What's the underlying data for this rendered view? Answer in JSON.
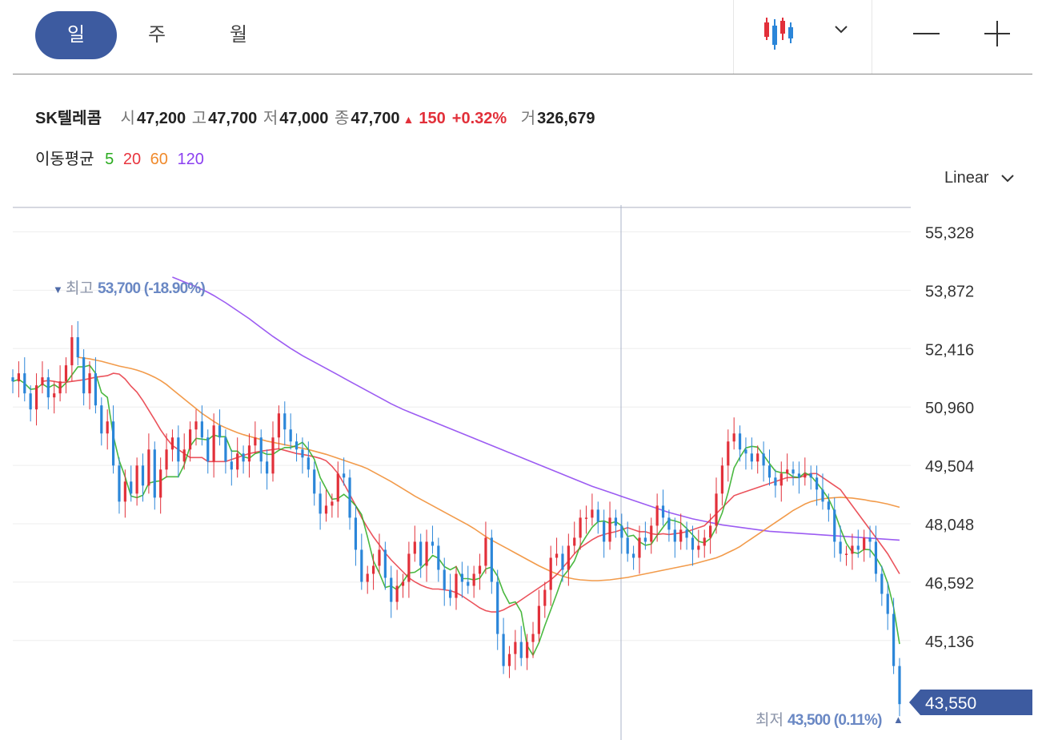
{
  "period_tabs": [
    "일",
    "주",
    "월"
  ],
  "active_tab": 0,
  "toolbar": {
    "chart_type_icon": "candlestick-icon",
    "dropdown_icon": "chevron-down-icon",
    "zoom_out_icon": "minus-icon",
    "zoom_in_icon": "plus-icon"
  },
  "quote": {
    "name": "SK텔레콤",
    "open_label": "시",
    "open": "47,200",
    "high_label": "고",
    "high": "47,700",
    "low_label": "저",
    "low": "47,000",
    "close_label": "종",
    "close": "47,700",
    "change_arrow": "▲",
    "change": "150",
    "change_pct": "+0.32%",
    "volume_label": "거",
    "volume": "326,679"
  },
  "ma_legend": {
    "label": "이동평균",
    "items": [
      {
        "period": "5",
        "color": "#2aab1f"
      },
      {
        "period": "20",
        "color": "#e8353f"
      },
      {
        "period": "60",
        "color": "#f08a2c"
      },
      {
        "period": "120",
        "color": "#8b3ff0"
      }
    ]
  },
  "scale_selector": "Linear",
  "chart_data": {
    "type": "candlestick",
    "y_ticks": [
      "55,328",
      "53,872",
      "52,416",
      "50,960",
      "49,504",
      "48,048",
      "46,592",
      "45,136"
    ],
    "ylim": [
      43000,
      56000
    ],
    "current_price_label": "43,550",
    "high_marker": {
      "prefix": "▼",
      "label": "최고",
      "value": "53,700 (-18.90%)"
    },
    "low_marker": {
      "label": "최저",
      "value": "43,500 (0.11%)",
      "suffix": "▲"
    },
    "colors": {
      "up": "#e2303a",
      "down": "#2b86d9",
      "ma5": "#2aab1f",
      "ma20": "#e8353f",
      "ma60": "#f08a2c",
      "ma120": "#8b3ff0"
    },
    "closes": [
      51600,
      51800,
      51300,
      50900,
      51500,
      51700,
      51200,
      51300,
      51600,
      52000,
      52700,
      52200,
      51300,
      51800,
      51000,
      50300,
      50600,
      49500,
      48600,
      49100,
      48800,
      49500,
      49000,
      49900,
      48700,
      49400,
      49900,
      50200,
      49600,
      49900,
      50400,
      50600,
      50200,
      49600,
      50500,
      50200,
      49600,
      49400,
      49800,
      49600,
      50000,
      50200,
      49600,
      49300,
      50200,
      50800,
      50400,
      50100,
      49900,
      49700,
      49400,
      48800,
      48300,
      48500,
      48600,
      49300,
      49200,
      48200,
      47400,
      46600,
      46800,
      47000,
      47400,
      46700,
      46100,
      46500,
      46600,
      47300,
      47600,
      47000,
      47600,
      47500,
      46900,
      46400,
      46200,
      46800,
      46600,
      46500,
      46800,
      47000,
      47700,
      46600,
      45300,
      44500,
      44800,
      45100,
      44700,
      45100,
      45300,
      46000,
      46400,
      47200,
      47300,
      46900,
      47500,
      47700,
      48200,
      48200,
      48400,
      48100,
      47600,
      48200,
      48000,
      47700,
      47300,
      47200,
      47700,
      47600,
      48000,
      48500,
      48200,
      47900,
      47600,
      47900,
      47700,
      47400,
      47500,
      47700,
      48000,
      48800,
      49500,
      50100,
      50300,
      49900,
      49800,
      49600,
      49800,
      49500,
      49200,
      49000,
      49300,
      49400,
      49300,
      49200,
      49300,
      49200,
      48900,
      48600,
      48400,
      47600,
      47300,
      47300,
      47500,
      47400,
      47700,
      47600,
      46800,
      46300,
      45800,
      44500,
      43550
    ],
    "ma5": [
      51600,
      51650,
      51550,
      51400,
      51420,
      51540,
      51440,
      51520,
      51420,
      51560,
      51760,
      51960,
      51960,
      52000,
      51800,
      51320,
      51200,
      50240,
      49620,
      49220,
      48740,
      48700,
      48760,
      49060,
      49100,
      49120,
      49220,
      49220,
      49220,
      49520,
      49980,
      50180,
      50160,
      50140,
      50260,
      50220,
      50220,
      49860,
      49860,
      49720,
      49680,
      49800,
      49840,
      49780,
      49780,
      49880,
      49950,
      49950,
      50000,
      50080,
      49900,
      49660,
      49200,
      48920,
      48660,
      48680,
      48780,
      48660,
      48500,
      48280,
      47720,
      47120,
      46820,
      46460,
      46500,
      46400,
      46600,
      46820,
      46840,
      46940,
      47080,
      47260,
      47190,
      46980,
      46900,
      46980,
      46680,
      46680,
      46650,
      46690,
      46920,
      46970,
      46740,
      46340,
      46060,
      46100,
      45850,
      45010,
      44770,
      45080,
      45510,
      45900,
      46300,
      46720,
      46900,
      47120,
      47500,
      47740,
      47960,
      48100,
      48120,
      48060,
      48100,
      48000,
      47730,
      47760,
      47600,
      47510,
      47540,
      47760,
      47960,
      48150,
      48120,
      48070,
      47930,
      47770,
      47610,
      47570,
      47680,
      47960,
      48320,
      48830,
      49440,
      49710,
      49940,
      49980,
      49960,
      49760,
      49550,
      49360,
      49320,
      49320,
      49220,
      49200,
      49320,
      49240,
      49070,
      48880,
      48670,
      48350,
      47930,
      47560,
      47340,
      47310,
      47410,
      47400,
      47210,
      46970,
      46570,
      45960,
      45050
    ],
    "ma20": [
      51600,
      51620,
      51600,
      51570,
      51580,
      51600,
      51620,
      51640,
      51670,
      51700,
      51720,
      51740,
      51800,
      51780,
      51660,
      51480,
      51330,
      51120,
      50880,
      50640,
      50390,
      50180,
      50000,
      49900,
      49800,
      49700,
      49700,
      49700,
      49600,
      49600,
      49600,
      49600,
      49650,
      49700,
      49750,
      49800,
      49830,
      49860,
      49880,
      49900,
      49920,
      49880,
      49840,
      49800,
      49780,
      49750,
      49720,
      49680,
      49620,
      49480,
      49300,
      49050,
      48780,
      48500,
      48200,
      47950,
      47720,
      47520,
      47320,
      47150,
      47000,
      46850,
      46700,
      46600,
      46520,
      46460,
      46420,
      46420,
      46400,
      46380,
      46330,
      46250,
      46150,
      46050,
      45950,
      45880,
      45850,
      45850,
      45900,
      45980,
      46050,
      46150,
      46250,
      46350,
      46450,
      46550,
      46650,
      46780,
      46950,
      47120,
      47300,
      47450,
      47550,
      47650,
      47730,
      47780,
      47820,
      47850,
      47900,
      47950,
      47900,
      47850,
      47850,
      47800,
      47780,
      47800,
      47780,
      47800,
      47820,
      47850,
      47900,
      47950,
      48000,
      48150,
      48300,
      48450,
      48600,
      48750,
      48800,
      48850,
      48900,
      48950,
      49000,
      49050,
      49100,
      49150,
      49200,
      49200,
      49200,
      49250,
      49300,
      49300,
      49200,
      49100,
      49000,
      48900,
      48700,
      48500,
      48300,
      48100,
      47900,
      47700,
      47500,
      47300,
      47050,
      46800
    ],
    "ma60": [
      52200,
      52180,
      52160,
      52130,
      52100,
      52060,
      52020,
      51980,
      51950,
      51920,
      51880,
      51830,
      51770,
      51700,
      51620,
      51520,
      51400,
      51280,
      51160,
      51040,
      50920,
      50800,
      50700,
      50600,
      50510,
      50440,
      50380,
      50320,
      50270,
      50230,
      50190,
      50150,
      50110,
      50080,
      50050,
      50020,
      49990,
      49960,
      49930,
      49900,
      49860,
      49820,
      49780,
      49730,
      49680,
      49630,
      49580,
      49530,
      49480,
      49420,
      49340,
      49260,
      49180,
      49100,
      49010,
      48920,
      48830,
      48740,
      48660,
      48580,
      48500,
      48420,
      48340,
      48260,
      48180,
      48100,
      48020,
      47930,
      47830,
      47730,
      47640,
      47560,
      47480,
      47400,
      47320,
      47240,
      47160,
      47080,
      47000,
      46930,
      46860,
      46800,
      46740,
      46700,
      46670,
      46650,
      46640,
      46630,
      46630,
      46640,
      46650,
      46670,
      46690,
      46710,
      46740,
      46770,
      46800,
      46830,
      46860,
      46890,
      46920,
      46950,
      46980,
      47010,
      47040,
      47080,
      47120,
      47160,
      47200,
      47260,
      47330,
      47400,
      47480,
      47580,
      47680,
      47780,
      47880,
      47980,
      48080,
      48180,
      48280,
      48380,
      48460,
      48540,
      48600,
      48640,
      48670,
      48690,
      48700,
      48710,
      48700,
      48690,
      48670,
      48650,
      48620,
      48600,
      48570,
      48540,
      48500,
      48460
    ],
    "ma120": [
      54200,
      54140,
      54080,
      54020,
      53960,
      53890,
      53820,
      53740,
      53650,
      53560,
      53460,
      53360,
      53260,
      53160,
      53050,
      52940,
      52830,
      52720,
      52620,
      52520,
      52420,
      52330,
      52240,
      52160,
      52080,
      52000,
      51920,
      51840,
      51760,
      51680,
      51600,
      51520,
      51440,
      51360,
      51280,
      51200,
      51120,
      51040,
      50970,
      50900,
      50840,
      50780,
      50720,
      50660,
      50600,
      50540,
      50480,
      50420,
      50360,
      50300,
      50240,
      50180,
      50120,
      50060,
      50000,
      49940,
      49880,
      49820,
      49760,
      49700,
      49640,
      49580,
      49520,
      49460,
      49400,
      49340,
      49280,
      49220,
      49160,
      49100,
      49040,
      48980,
      48930,
      48880,
      48830,
      48780,
      48730,
      48680,
      48630,
      48580,
      48530,
      48480,
      48430,
      48380,
      48330,
      48290,
      48250,
      48210,
      48170,
      48140,
      48110,
      48080,
      48050,
      48020,
      48000,
      47980,
      47960,
      47940,
      47920,
      47900,
      47880,
      47860,
      47850,
      47840,
      47830,
      47820,
      47810,
      47800,
      47790,
      47780,
      47770,
      47760,
      47750,
      47740,
      47730,
      47720,
      47710,
      47700,
      47690,
      47680,
      47670,
      47660,
      47650,
      47640
    ]
  }
}
